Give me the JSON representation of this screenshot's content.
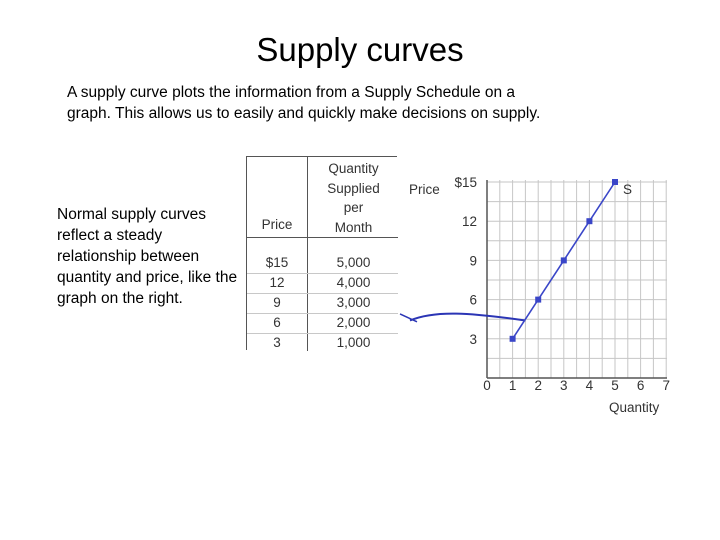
{
  "slide": {
    "title": "Supply curves",
    "intro": "A supply curve plots the information from a Supply Schedule on a graph. This allows us to easily and quickly make decisions on supply.",
    "note": "Normal supply curves reflect a steady relationship between quantity and price, like the graph on the right."
  },
  "schedule": {
    "price_header": "Price",
    "quantity_header": [
      "Quantity",
      "Supplied",
      "per",
      "Month"
    ],
    "rows": [
      {
        "price": "$15",
        "quantity": "5,000"
      },
      {
        "price": "12",
        "quantity": "4,000"
      },
      {
        "price": "9",
        "quantity": "3,000"
      },
      {
        "price": "6",
        "quantity": "2,000"
      },
      {
        "price": "3",
        "quantity": "1,000"
      }
    ]
  },
  "chart_data": {
    "type": "line",
    "ylabel": "Price",
    "xlabel": "Quantity",
    "xlim": [
      0,
      7
    ],
    "ylim": [
      0,
      15
    ],
    "x_ticks": [
      "0",
      "1",
      "2",
      "3",
      "4",
      "5",
      "6",
      "7"
    ],
    "y_ticks": [
      "3",
      "6",
      "9",
      "12",
      "$15"
    ],
    "grid": true,
    "series": [
      {
        "name": "S",
        "x": [
          1,
          2,
          3,
          4,
          5
        ],
        "y": [
          3,
          6,
          9,
          12,
          15
        ],
        "color": "#3a46c8"
      }
    ],
    "annotation_color": "#2b35b5"
  }
}
